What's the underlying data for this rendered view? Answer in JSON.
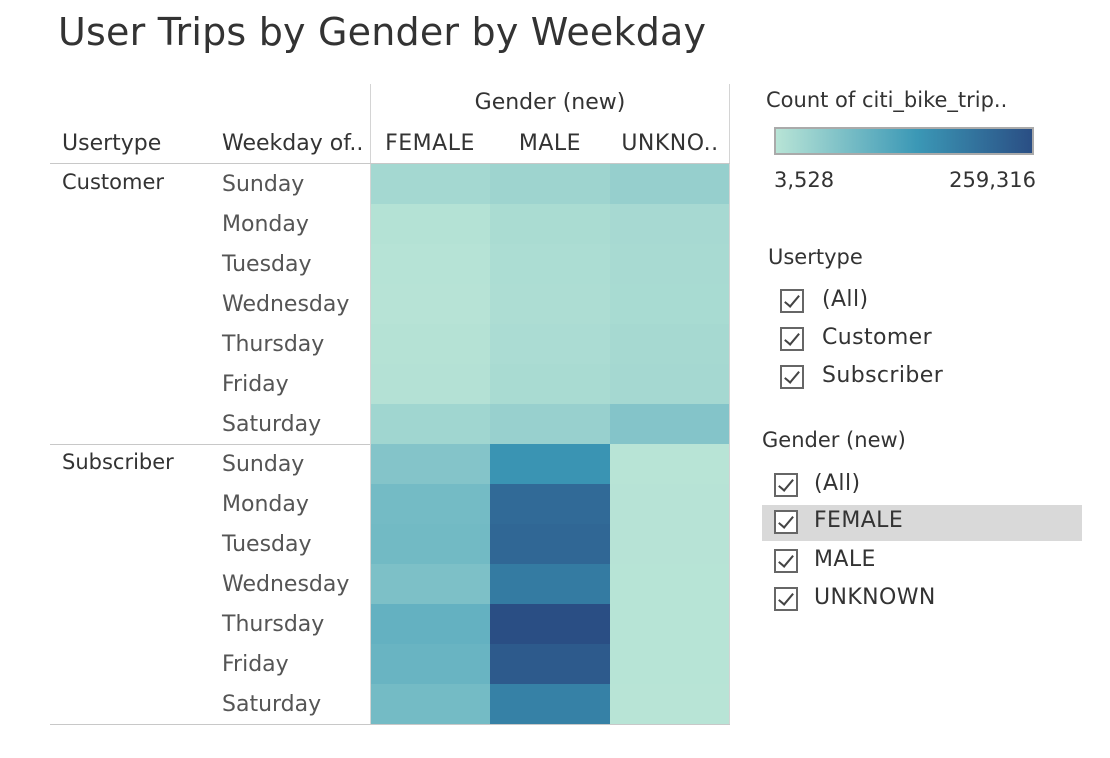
{
  "title": "User Trips by Gender by Weekday",
  "headers": {
    "usertype": "Usertype",
    "weekday": "Weekday of..",
    "gender_group": "Gender (new)",
    "columns": [
      "FEMALE",
      "MALE",
      "UNKNO.."
    ]
  },
  "legend": {
    "title": "Count of citi_bike_trip..",
    "min_label": "3,528",
    "max_label": "259,316",
    "color_low": "#b8e4d6",
    "color_mid": "#3b98b6",
    "color_high": "#2a4e84"
  },
  "chart_data": {
    "type": "heatmap",
    "title": "User Trips by Gender by Weekday",
    "columns": [
      "FEMALE",
      "MALE",
      "UNKNOWN"
    ],
    "value_range": [
      3528,
      259316
    ],
    "row_groups": [
      {
        "usertype": "Customer",
        "weekdays": [
          "Sunday",
          "Monday",
          "Tuesday",
          "Wednesday",
          "Thursday",
          "Friday",
          "Saturday"
        ],
        "values": [
          [
            26000,
            33000,
            42000
          ],
          [
            8000,
            19000,
            23000
          ],
          [
            5500,
            17000,
            22000
          ],
          [
            5000,
            16000,
            21000
          ],
          [
            7000,
            18000,
            24000
          ],
          [
            8500,
            20000,
            25000
          ],
          [
            30000,
            40000,
            62000
          ]
        ]
      },
      {
        "usertype": "Subscriber",
        "weekdays": [
          "Sunday",
          "Monday",
          "Tuesday",
          "Wednesday",
          "Thursday",
          "Friday",
          "Saturday"
        ],
        "values": [
          [
            62000,
            150000,
            3528
          ],
          [
            80000,
            215000,
            4500
          ],
          [
            82000,
            220000,
            4500
          ],
          [
            70000,
            190000,
            4300
          ],
          [
            98000,
            259316,
            4300
          ],
          [
            92000,
            240000,
            4400
          ],
          [
            80000,
            180000,
            3900
          ]
        ]
      }
    ]
  },
  "filters": {
    "usertype": {
      "title": "Usertype",
      "items": [
        "(All)",
        "Customer",
        "Subscriber"
      ]
    },
    "gender": {
      "title": "Gender (new)",
      "items": [
        "(All)",
        "FEMALE",
        "MALE",
        "UNKNOWN"
      ]
    }
  }
}
